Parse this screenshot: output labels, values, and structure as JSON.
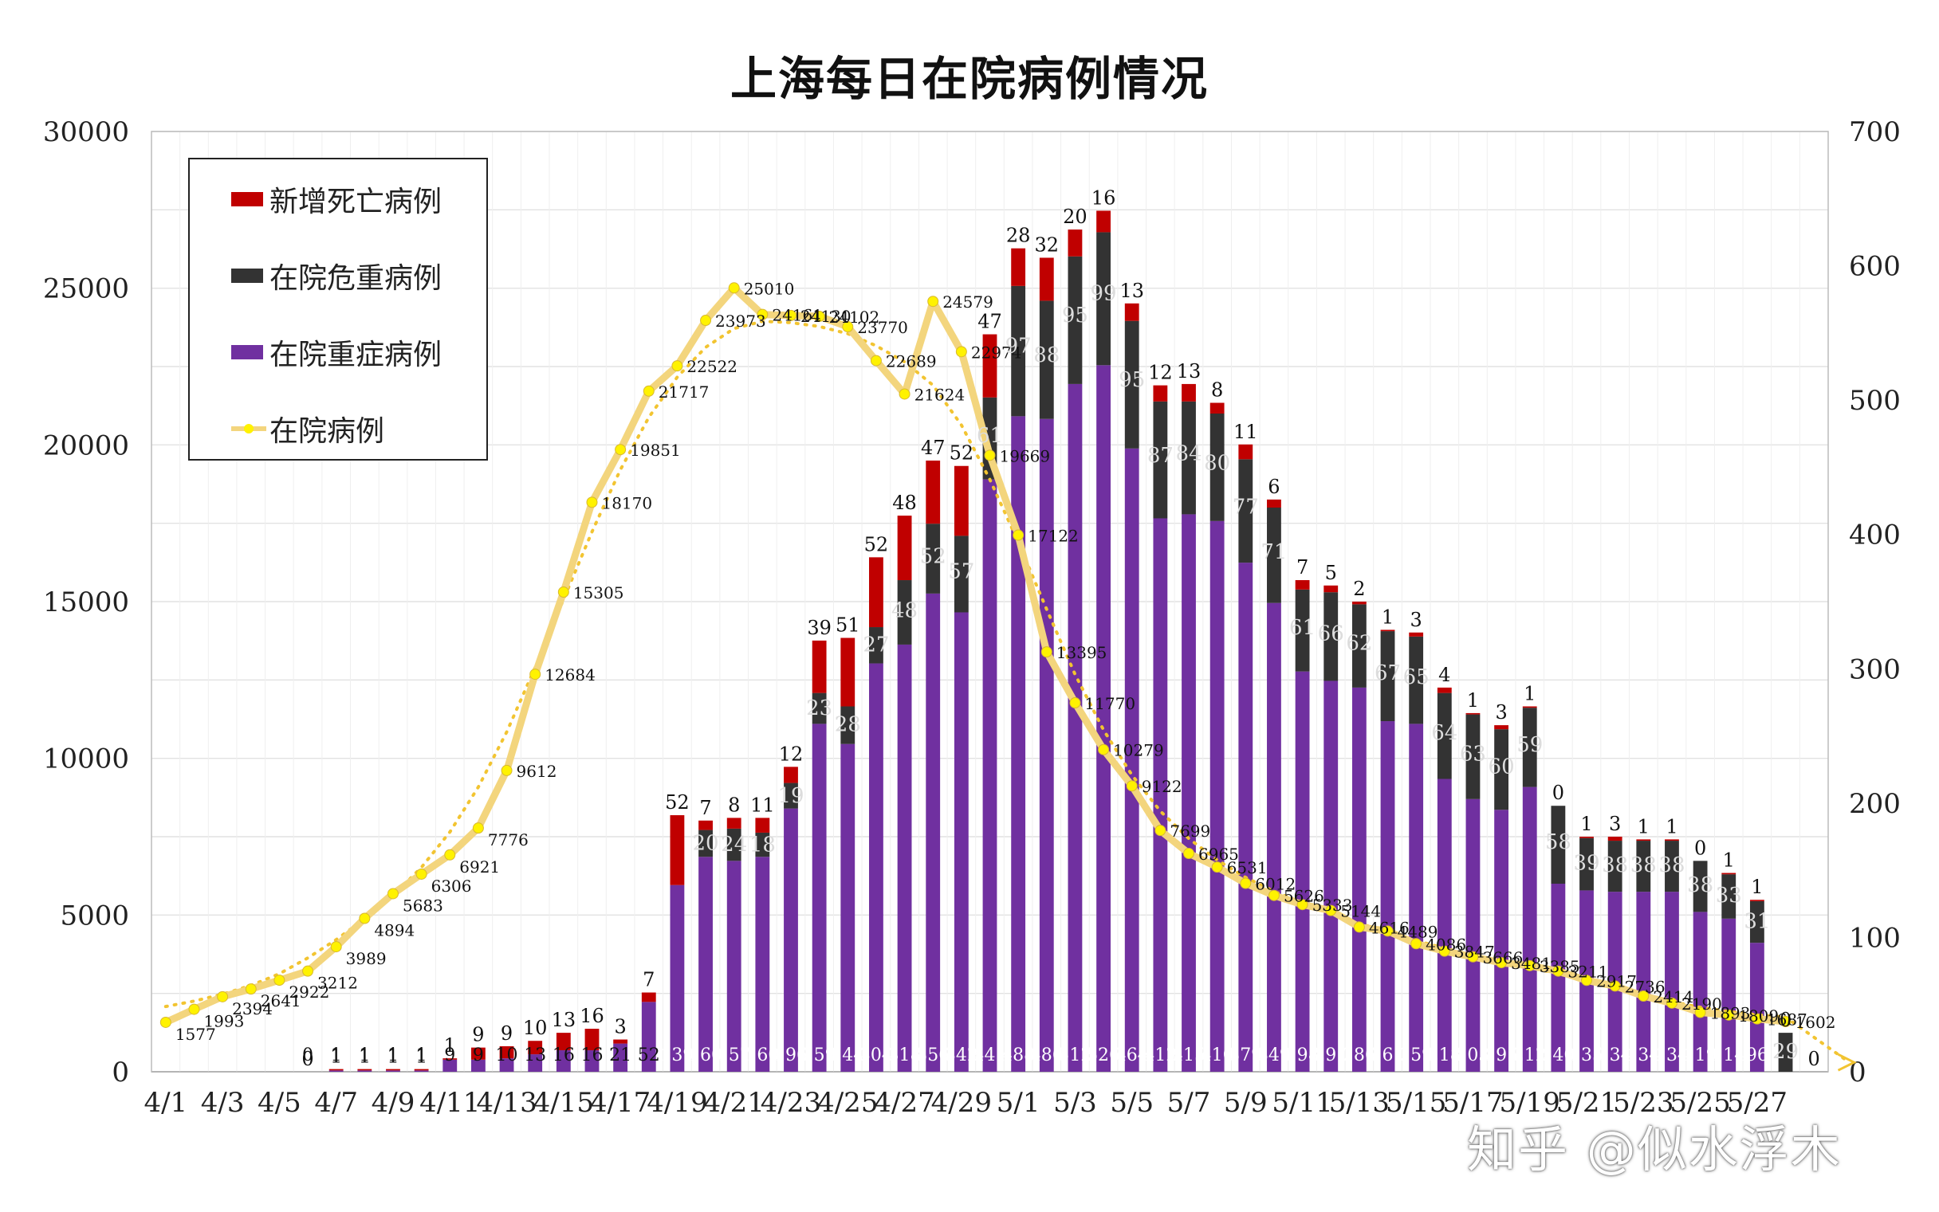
{
  "chart_data": {
    "type": "bar",
    "title": "上海每日在院病例情况",
    "xlabel": "",
    "ylabel": "",
    "ylim": [
      0,
      30000
    ],
    "y2lim": [
      0,
      700
    ],
    "y_ticks": [
      "0",
      "5000",
      "10000",
      "15000",
      "20000",
      "25000",
      "30000"
    ],
    "y2_ticks": [
      "0",
      "100",
      "200",
      "300",
      "400",
      "500",
      "600",
      "700"
    ],
    "grid": true,
    "legend_position": "top-left",
    "categories": [
      "4/1",
      "4/2",
      "4/3",
      "4/4",
      "4/5",
      "4/6",
      "4/7",
      "4/8",
      "4/9",
      "4/10",
      "4/11",
      "4/12",
      "4/13",
      "4/14",
      "4/15",
      "4/16",
      "4/17",
      "4/18",
      "4/19",
      "4/20",
      "4/21",
      "4/22",
      "4/23",
      "4/24",
      "4/25",
      "4/26",
      "4/27",
      "4/28",
      "4/29",
      "4/30",
      "5/1",
      "5/2",
      "5/3",
      "5/4",
      "5/5",
      "5/6",
      "5/7",
      "5/8",
      "5/9",
      "5/10",
      "5/11",
      "5/12",
      "5/13",
      "5/14",
      "5/15",
      "5/16",
      "5/17",
      "5/18",
      "5/19",
      "5/20",
      "5/21",
      "5/22",
      "5/23",
      "5/24",
      "5/25",
      "5/26",
      "5/27",
      "5/28",
      "5/29"
    ],
    "x_tick_labels": [
      "4/1",
      "4/3",
      "4/5",
      "4/7",
      "4/9",
      "4/11",
      "4/13",
      "4/15",
      "4/17",
      "4/19",
      "4/21",
      "4/23",
      "4/25",
      "4/27",
      "4/29",
      "5/1",
      "5/3",
      "5/5",
      "5/7",
      "5/9",
      "5/11",
      "5/13",
      "5/15",
      "5/17",
      "5/19",
      "5/21",
      "5/23",
      "5/25",
      "5/27"
    ],
    "series": [
      {
        "name": "新增死亡病例",
        "axis": "right",
        "color": "#c00000",
        "values": [
          null,
          null,
          null,
          null,
          null,
          0,
          1,
          1,
          1,
          1,
          1,
          9,
          9,
          10,
          13,
          16,
          3,
          7,
          52,
          7,
          8,
          11,
          12,
          39,
          51,
          52,
          48,
          47,
          52,
          47,
          28,
          32,
          20,
          16,
          13,
          12,
          13,
          8,
          11,
          6,
          7,
          5,
          2,
          1,
          3,
          4,
          1,
          3,
          1,
          0,
          1,
          3,
          1,
          1,
          0,
          1,
          1,
          0,
          0
        ]
      },
      {
        "name": "在院危重病例",
        "axis": "right",
        "color": "#333333",
        "values": [
          null,
          null,
          null,
          null,
          null,
          null,
          null,
          null,
          null,
          null,
          null,
          null,
          null,
          null,
          null,
          null,
          null,
          null,
          null,
          20,
          24,
          18,
          19,
          23,
          28,
          27,
          48,
          52,
          57,
          61,
          97,
          88,
          95,
          99,
          95,
          87,
          84,
          80,
          77,
          71,
          61,
          66,
          62,
          67,
          65,
          64,
          63,
          60,
          59,
          58,
          39,
          38,
          38,
          38,
          38,
          33,
          31,
          29,
          null
        ]
      },
      {
        "name": "在院重症病例",
        "axis": "right",
        "color": "#7030a0",
        "values": [
          null,
          null,
          null,
          null,
          null,
          0,
          1,
          1,
          1,
          1,
          9,
          9,
          10,
          13,
          16,
          16,
          21,
          52,
          139,
          160,
          157,
          160,
          196,
          259,
          244,
          304,
          318,
          356,
          342,
          441,
          488,
          486,
          512,
          526,
          464,
          412,
          415,
          410,
          379,
          349,
          298,
          291,
          286,
          261,
          259,
          218,
          203,
          195,
          212,
          140,
          135,
          134,
          134,
          134,
          119,
          114,
          96,
          null,
          null
        ]
      },
      {
        "name": "在院病例",
        "axis": "left",
        "color": "#f3d57d",
        "values": [
          1577,
          1993,
          2394,
          2641,
          2922,
          3212,
          3989,
          4894,
          5683,
          6306,
          6921,
          7776,
          9612,
          12684,
          15305,
          18170,
          19851,
          21717,
          22522,
          23973,
          25010,
          24161,
          24130,
          24102,
          23770,
          22689,
          21624,
          24579,
          22974,
          19669,
          17122,
          13395,
          11770,
          10279,
          9122,
          7699,
          6965,
          6531,
          6012,
          5626,
          5333,
          5144,
          4616,
          4489,
          4086,
          3847,
          3666,
          3481,
          3385,
          3211,
          2917,
          2736,
          2414,
          2190,
          1893,
          1809,
          1687,
          1602,
          null
        ]
      }
    ],
    "icu_labels": [
      "20",
      "24",
      "18",
      "19",
      "23",
      "28",
      "27",
      "48",
      "52",
      "57",
      "61",
      "97",
      "88",
      "95",
      "99",
      "95",
      "87",
      "84",
      "80",
      "77",
      "71",
      "61",
      "66",
      "62",
      "67",
      "65",
      "64",
      "63",
      "60",
      "59",
      "58",
      "39",
      "38",
      "38",
      "38",
      "38",
      "33",
      "31",
      "29"
    ],
    "hosp_labels": [
      "1577",
      "1993",
      "2394",
      "2641",
      "2922",
      "3212",
      "3989",
      "4894",
      "5683",
      "6306",
      "6921",
      "7776",
      "9612",
      "12684",
      "15305",
      "18170",
      "19851",
      "21717",
      "22522",
      "23973",
      "25010",
      "24161",
      "24130",
      "24102",
      "23770",
      "22689",
      "21624",
      "24579",
      "22974",
      "19669",
      "17122",
      "13395",
      "11770",
      "10279",
      "9122",
      "7699",
      "6965",
      "6531",
      "6012",
      "5626",
      "5333",
      "5144",
      "4616",
      "4489",
      "4086",
      "3847",
      "3666",
      "3481",
      "3385",
      "3211",
      "2917",
      "2736",
      "2414",
      "2190",
      "1893",
      "1809",
      "1687",
      "1602"
    ],
    "severe_labels": [
      "0",
      "1",
      "1",
      "1",
      "1",
      "9",
      "9",
      "10",
      "13",
      "16",
      "16",
      "21",
      "52",
      "139",
      "160",
      "157",
      "160",
      "196",
      "259",
      "244",
      "304",
      "318",
      "356",
      "342",
      "441",
      "488",
      "486",
      "512",
      "526",
      "464",
      "412",
      "415",
      "410",
      "379",
      "349",
      "298",
      "291",
      "286",
      "261",
      "259",
      "218",
      "203",
      "195",
      "212",
      "140",
      "135",
      "134",
      "134",
      "134",
      "119",
      "114",
      "96"
    ],
    "death_labels": [
      "0",
      "1",
      "1",
      "1",
      "1",
      "1",
      "9",
      "9",
      "10",
      "13",
      "16",
      "3",
      "7",
      "52",
      "7",
      "8",
      "11",
      "12",
      "39",
      "51",
      "52",
      "48",
      "47",
      "52",
      "47",
      "28",
      "32",
      "20",
      "16",
      "13",
      "12",
      "13",
      "8",
      "11",
      "6",
      "7",
      "5",
      "2",
      "1",
      "3",
      "4",
      "1",
      "3",
      "1",
      "0",
      "1",
      "3",
      "1",
      "1",
      "0",
      "1",
      "1",
      "0",
      "0"
    ]
  },
  "legend": {
    "items": [
      "新增死亡病例",
      "在院危重病例",
      "在院重症病例",
      "在院病例"
    ]
  },
  "watermark": "知乎 @似水浮木"
}
